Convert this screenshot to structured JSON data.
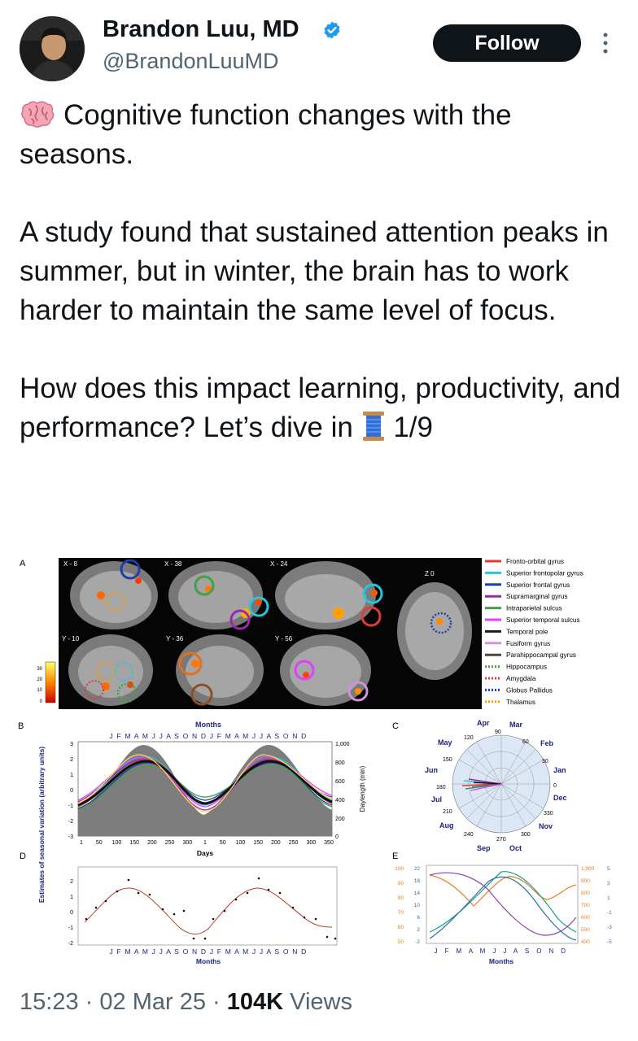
{
  "author": {
    "name": "Brandon Luu, MD",
    "handle": "@BrandonLuuMD",
    "avatar_icon": "avatar-photo",
    "verified_icon": "verified-badge-icon",
    "verified_color": "#1d9bf0"
  },
  "follow_label": "Follow",
  "post": {
    "paragraph1": "Cognitive function changes with the seasons.",
    "paragraph2": "A study found that sustained attention peaks in summer, but in winter, the brain has to work harder to maintain the same level of focus.",
    "paragraph3_a": "How does this impact learning, productivity, and performance? Let’s dive in",
    "paragraph3_b": "1/9",
    "emoji_brain": "brain-emoji",
    "emoji_thread": "thread-spool-emoji"
  },
  "figure": {
    "panel_a": {
      "label": "A",
      "slice_labels": [
        "X - 8",
        "X - 38",
        "X - 24",
        "Z 0",
        "Y - 10",
        "Y - 36",
        "Y - 56"
      ],
      "colorbar_ticks": [
        "30",
        "20",
        "10",
        "0"
      ],
      "legend": [
        {
          "label": "Fronto-orbital gyrus",
          "color": "#e53935",
          "style": "solid"
        },
        {
          "label": "Superior frontopolar gyrus",
          "color": "#26c6da",
          "style": "solid"
        },
        {
          "label": "Superior frontal gyrus",
          "color": "#1e3ea8",
          "style": "solid"
        },
        {
          "label": "Supramarginal gyrus",
          "color": "#9c27b0",
          "style": "solid"
        },
        {
          "label": "Intraparietal sulcus",
          "color": "#43a047",
          "style": "solid"
        },
        {
          "label": "Superior temporal sulcus",
          "color": "#e040fb",
          "style": "solid"
        },
        {
          "label": "Temporal pole",
          "color": "#1a1a1a",
          "style": "solid"
        },
        {
          "label": "Fusiform gyrus",
          "color": "#ce93d8",
          "style": "solid"
        },
        {
          "label": "Parahippocampal gyrus",
          "color": "#5d4037",
          "style": "solid"
        },
        {
          "label": "Hippocampus",
          "color": "#43a047",
          "style": "dotted"
        },
        {
          "label": "Amygdala",
          "color": "#e53935",
          "style": "dotted"
        },
        {
          "label": "Globus Pallidus",
          "color": "#1e3ea8",
          "style": "dotted"
        },
        {
          "label": "Thalamus",
          "color": "#ff9800",
          "style": "dotted"
        }
      ]
    },
    "panel_b": {
      "label": "B",
      "top_label": "Months",
      "month_letters": "J F M A M J J A S O N D J F M A M J J A S O N D",
      "xlabel": "Days",
      "x_ticks": [
        "1",
        "50",
        "100",
        "150",
        "200",
        "250",
        "300",
        "1",
        "50",
        "100",
        "150",
        "200",
        "250",
        "300",
        "350"
      ],
      "y_ticks": [
        "3",
        "2",
        "1",
        "0",
        "-1",
        "-2",
        "-3"
      ],
      "right_ticks": [
        "1,000",
        "800",
        "600",
        "400",
        "200",
        "0"
      ],
      "right_label": "Daylength (min)"
    },
    "y_axis_label": "Estimates of seasonal variation (arbitrary units)",
    "panel_c": {
      "label": "C",
      "months": [
        "Apr",
        "Mar",
        "May",
        "Feb",
        "Jun",
        "Jan",
        "Jul",
        "Dec",
        "Aug",
        "Nov",
        "Sep",
        "Oct"
      ],
      "degrees": [
        "120",
        "90",
        "60",
        "150",
        "30",
        "180",
        "0",
        "210",
        "330",
        "240",
        "270",
        "300"
      ]
    },
    "panel_d": {
      "label": "D",
      "month_letters": "J F M A M J J A S O N D J F M A M J J A S O N D",
      "xlabel": "Months",
      "y_ticks": [
        "2",
        "1",
        "0",
        "-1",
        "-2"
      ]
    },
    "panel_e": {
      "label": "E",
      "month_letters": "J F M A M J J A S O N D",
      "xlabel": "Months",
      "left_ticks_orange": [
        "100",
        "90",
        "80",
        "70",
        "60",
        "50"
      ],
      "left_ticks_blue": [
        "22",
        "18",
        "14",
        "10",
        "6",
        "2",
        "-2"
      ],
      "right_ticks_orange": [
        "1,000",
        "900",
        "800",
        "700",
        "600",
        "500",
        "400"
      ],
      "right_ticks_purple": [
        "5",
        "3",
        "1",
        "-1",
        "-3",
        "-5"
      ]
    }
  },
  "meta": {
    "time": "15:23",
    "date": "02 Mar 25",
    "views_count": "104K",
    "views_label": "Views"
  }
}
